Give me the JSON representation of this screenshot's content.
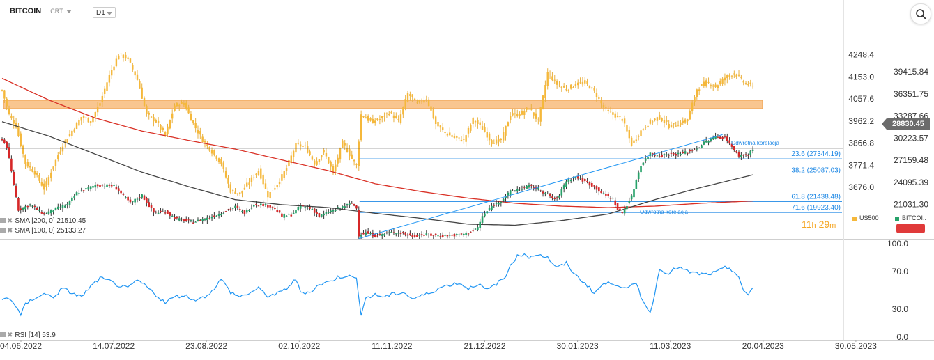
{
  "header": {
    "symbol": "BITCOIN",
    "chart_type": "CRT",
    "timeframe": "D1"
  },
  "chart_data": [
    {
      "type": "candlestick",
      "primary_series": "BITCOIN",
      "overlay_series": "US500",
      "last_price": "28830.45",
      "y_right_ticks": [
        "39415.84",
        "36351.75",
        "33287.66",
        "30223.57",
        "27159.48",
        "24095.39",
        "21031.30"
      ],
      "y_right_range": [
        16500,
        40500
      ],
      "y_left_ticks": [
        "4248.4",
        "4153.0",
        "4057.6",
        "3962.2",
        "3866.8",
        "3771.4",
        "3676.0"
      ],
      "y_left_range": [
        3594.0,
        4293.0
      ],
      "x_ticks": [
        "04.06.2022",
        "14.07.2022",
        "23.08.2022",
        "02.10.2022",
        "11.11.2022",
        "21.12.2022",
        "30.01.2023",
        "11.03.2023",
        "20.04.2023",
        "30.05.2023"
      ],
      "btc_anchors": [
        [
          0,
          30100
        ],
        [
          2,
          29000
        ],
        [
          7,
          20300
        ],
        [
          12,
          21000
        ],
        [
          18,
          19700
        ],
        [
          22,
          20300
        ],
        [
          28,
          21000
        ],
        [
          32,
          22600
        ],
        [
          40,
          23700
        ],
        [
          48,
          23600
        ],
        [
          55,
          21200
        ],
        [
          60,
          22300
        ],
        [
          65,
          19900
        ],
        [
          70,
          20000
        ],
        [
          75,
          19000
        ],
        [
          82,
          18600
        ],
        [
          90,
          19300
        ],
        [
          97,
          20300
        ],
        [
          100,
          20700
        ],
        [
          104,
          19800
        ],
        [
          108,
          21100
        ],
        [
          112,
          21000
        ],
        [
          116,
          20700
        ],
        [
          120,
          19400
        ],
        [
          124,
          19600
        ],
        [
          128,
          20800
        ],
        [
          133,
          20400
        ],
        [
          136,
          19350
        ],
        [
          140,
          20000
        ],
        [
          145,
          20600
        ],
        [
          150,
          21200
        ],
        [
          152,
          20500
        ],
        [
          153,
          16800
        ],
        [
          156,
          17100
        ],
        [
          160,
          16700
        ],
        [
          164,
          16950
        ],
        [
          168,
          17200
        ],
        [
          172,
          17000
        ],
        [
          176,
          16600
        ],
        [
          180,
          16850
        ],
        [
          188,
          16700
        ],
        [
          196,
          16800
        ],
        [
          200,
          17100
        ],
        [
          204,
          17800
        ],
        [
          206,
          19400
        ],
        [
          210,
          20800
        ],
        [
          214,
          21600
        ],
        [
          218,
          22800
        ],
        [
          222,
          23200
        ],
        [
          226,
          23600
        ],
        [
          230,
          23100
        ],
        [
          233,
          22600
        ],
        [
          236,
          21900
        ],
        [
          238,
          21800
        ],
        [
          242,
          24300
        ],
        [
          246,
          24900
        ],
        [
          250,
          24200
        ],
        [
          254,
          23500
        ],
        [
          258,
          22400
        ],
        [
          262,
          21800
        ],
        [
          264,
          20300
        ],
        [
          266,
          19900
        ],
        [
          270,
          22100
        ],
        [
          272,
          24500
        ],
        [
          274,
          26500
        ],
        [
          278,
          28100
        ],
        [
          282,
          27800
        ],
        [
          286,
          28000
        ],
        [
          290,
          28000
        ],
        [
          294,
          28300
        ],
        [
          298,
          28800
        ],
        [
          302,
          29800
        ],
        [
          306,
          30400
        ],
        [
          310,
          30300
        ],
        [
          312,
          29600
        ],
        [
          314,
          28400
        ],
        [
          316,
          27800
        ],
        [
          320,
          27900
        ],
        [
          322,
          28830
        ]
      ],
      "spx_anchors": [
        [
          0,
          4095
        ],
        [
          3,
          3990
        ],
        [
          6,
          3940
        ],
        [
          10,
          3780
        ],
        [
          14,
          3740
        ],
        [
          18,
          3670
        ],
        [
          22,
          3770
        ],
        [
          26,
          3860
        ],
        [
          30,
          3920
        ],
        [
          34,
          3980
        ],
        [
          38,
          3960
        ],
        [
          42,
          4040
        ],
        [
          46,
          4160
        ],
        [
          50,
          4250
        ],
        [
          54,
          4230
        ],
        [
          58,
          4140
        ],
        [
          62,
          3990
        ],
        [
          66,
          3960
        ],
        [
          70,
          3900
        ],
        [
          74,
          4030
        ],
        [
          78,
          4040
        ],
        [
          82,
          3950
        ],
        [
          86,
          3880
        ],
        [
          90,
          3830
        ],
        [
          94,
          3780
        ],
        [
          98,
          3660
        ],
        [
          102,
          3650
        ],
        [
          106,
          3700
        ],
        [
          110,
          3750
        ],
        [
          114,
          3640
        ],
        [
          118,
          3690
        ],
        [
          122,
          3760
        ],
        [
          126,
          3860
        ],
        [
          130,
          3850
        ],
        [
          134,
          3780
        ],
        [
          138,
          3830
        ],
        [
          142,
          3740
        ],
        [
          146,
          3870
        ],
        [
          150,
          3800
        ],
        [
          152,
          3770
        ],
        [
          154,
          3990
        ],
        [
          158,
          3960
        ],
        [
          162,
          3970
        ],
        [
          166,
          4000
        ],
        [
          170,
          3960
        ],
        [
          174,
          4080
        ],
        [
          178,
          4040
        ],
        [
          182,
          4060
        ],
        [
          186,
          3950
        ],
        [
          190,
          3910
        ],
        [
          194,
          3890
        ],
        [
          198,
          3880
        ],
        [
          202,
          3970
        ],
        [
          206,
          3930
        ],
        [
          210,
          3870
        ],
        [
          214,
          3880
        ],
        [
          218,
          3990
        ],
        [
          222,
          3990
        ],
        [
          226,
          4020
        ],
        [
          230,
          3960
        ],
        [
          234,
          4170
        ],
        [
          238,
          4120
        ],
        [
          242,
          4100
        ],
        [
          246,
          4120
        ],
        [
          250,
          4130
        ],
        [
          254,
          4090
        ],
        [
          258,
          4020
        ],
        [
          262,
          3990
        ],
        [
          266,
          3970
        ],
        [
          270,
          3860
        ],
        [
          274,
          3920
        ],
        [
          278,
          3960
        ],
        [
          282,
          3980
        ],
        [
          286,
          3940
        ],
        [
          290,
          3950
        ],
        [
          294,
          3970
        ],
        [
          298,
          4100
        ],
        [
          302,
          4130
        ],
        [
          306,
          4110
        ],
        [
          310,
          4150
        ],
        [
          314,
          4170
        ],
        [
          318,
          4130
        ],
        [
          322,
          4110
        ]
      ],
      "sma200_anchors": [
        [
          0,
          38500
        ],
        [
          20,
          35500
        ],
        [
          40,
          33000
        ],
        [
          60,
          31200
        ],
        [
          80,
          29900
        ],
        [
          100,
          28700
        ],
        [
          120,
          27200
        ],
        [
          140,
          25700
        ],
        [
          160,
          23900
        ],
        [
          180,
          22800
        ],
        [
          200,
          21900
        ],
        [
          220,
          21200
        ],
        [
          240,
          20800
        ],
        [
          260,
          20600
        ],
        [
          280,
          20800
        ],
        [
          300,
          21200
        ],
        [
          322,
          21510.45
        ]
      ],
      "sma100_anchors": [
        [
          0,
          32500
        ],
        [
          20,
          30500
        ],
        [
          40,
          28000
        ],
        [
          60,
          25500
        ],
        [
          80,
          23500
        ],
        [
          100,
          21700
        ],
        [
          120,
          21000
        ],
        [
          140,
          20600
        ],
        [
          160,
          19800
        ],
        [
          180,
          19100
        ],
        [
          200,
          18300
        ],
        [
          220,
          18150
        ],
        [
          240,
          18800
        ],
        [
          260,
          19700
        ],
        [
          280,
          21700
        ],
        [
          300,
          23400
        ],
        [
          322,
          25133.27
        ]
      ],
      "fib_levels": [
        {
          "label": "23.6 (27344.19)",
          "value": 27344.19
        },
        {
          "label": "38.2 (25087.03)",
          "value": 25087.03
        },
        {
          "label": "61.8 (21438.48)",
          "value": 21438.48
        },
        {
          "label": "71.6 (19923.40)",
          "value": 19923.4
        }
      ],
      "annotations": [
        "Odwrotna korelacja",
        "Odwrotna korelacja"
      ]
    },
    {
      "type": "line",
      "series": [
        {
          "name": "RSI [14]",
          "last": 53.9
        }
      ],
      "y_ticks": [
        "100.0",
        "70.0",
        "30.0",
        "0.0"
      ],
      "ylim": [
        0,
        100
      ],
      "rsi_anchors": [
        [
          0,
          40
        ],
        [
          3,
          42
        ],
        [
          6,
          33
        ],
        [
          8,
          23
        ],
        [
          10,
          35
        ],
        [
          14,
          42
        ],
        [
          18,
          46
        ],
        [
          22,
          43
        ],
        [
          26,
          52
        ],
        [
          30,
          47
        ],
        [
          34,
          43
        ],
        [
          38,
          54
        ],
        [
          42,
          63
        ],
        [
          46,
          60
        ],
        [
          50,
          55
        ],
        [
          54,
          52
        ],
        [
          58,
          61
        ],
        [
          62,
          54
        ],
        [
          66,
          45
        ],
        [
          70,
          37
        ],
        [
          74,
          43
        ],
        [
          78,
          45
        ],
        [
          82,
          40
        ],
        [
          86,
          42
        ],
        [
          90,
          49
        ],
        [
          94,
          62
        ],
        [
          98,
          48
        ],
        [
          102,
          43
        ],
        [
          106,
          47
        ],
        [
          110,
          52
        ],
        [
          114,
          44
        ],
        [
          118,
          46
        ],
        [
          122,
          52
        ],
        [
          126,
          62
        ],
        [
          128,
          48
        ],
        [
          132,
          48
        ],
        [
          136,
          56
        ],
        [
          140,
          59
        ],
        [
          144,
          64
        ],
        [
          148,
          66
        ],
        [
          152,
          62
        ],
        [
          154,
          25
        ],
        [
          156,
          42
        ],
        [
          160,
          45
        ],
        [
          164,
          43
        ],
        [
          168,
          46
        ],
        [
          172,
          48
        ],
        [
          176,
          41
        ],
        [
          180,
          44
        ],
        [
          184,
          48
        ],
        [
          188,
          53
        ],
        [
          192,
          56
        ],
        [
          196,
          58
        ],
        [
          200,
          52
        ],
        [
          204,
          57
        ],
        [
          208,
          50
        ],
        [
          212,
          57
        ],
        [
          216,
          64
        ],
        [
          218,
          78
        ],
        [
          222,
          89
        ],
        [
          226,
          86
        ],
        [
          230,
          89
        ],
        [
          234,
          85
        ],
        [
          238,
          74
        ],
        [
          242,
          79
        ],
        [
          246,
          66
        ],
        [
          250,
          58
        ],
        [
          254,
          47
        ],
        [
          258,
          57
        ],
        [
          262,
          58
        ],
        [
          266,
          54
        ],
        [
          268,
          51
        ],
        [
          272,
          58
        ],
        [
          274,
          44
        ],
        [
          278,
          25
        ],
        [
          282,
          72
        ],
        [
          286,
          69
        ],
        [
          290,
          75
        ],
        [
          294,
          70
        ],
        [
          298,
          68
        ],
        [
          302,
          67
        ],
        [
          306,
          69
        ],
        [
          310,
          74
        ],
        [
          312,
          74
        ],
        [
          314,
          70
        ],
        [
          316,
          64
        ],
        [
          318,
          48
        ],
        [
          320,
          45
        ],
        [
          322,
          53.9
        ]
      ]
    }
  ],
  "indicators": [
    {
      "label": "SMA [200,  0]  21510.45"
    },
    {
      "label": "SMA [100,  0]  25133.27"
    }
  ],
  "rsi_label": "RSI [14]  53.9",
  "timer": {
    "hours": "11",
    "h_unit": "h",
    "minutes": "29",
    "m_unit": "m"
  },
  "legend": {
    "overlay": "US500",
    "primary": "BITCOI.."
  },
  "colors": {
    "up": "#26a269",
    "down": "#d62728",
    "wick": "#333333",
    "spx_body": "#f5b83b",
    "sma200": "#d93025",
    "sma100": "#444444",
    "fib": "#1e88e5",
    "rsi": "#2196f3",
    "zone": "#f9c690",
    "zone_border": "#f0a04b",
    "trend": "#2196f3"
  }
}
